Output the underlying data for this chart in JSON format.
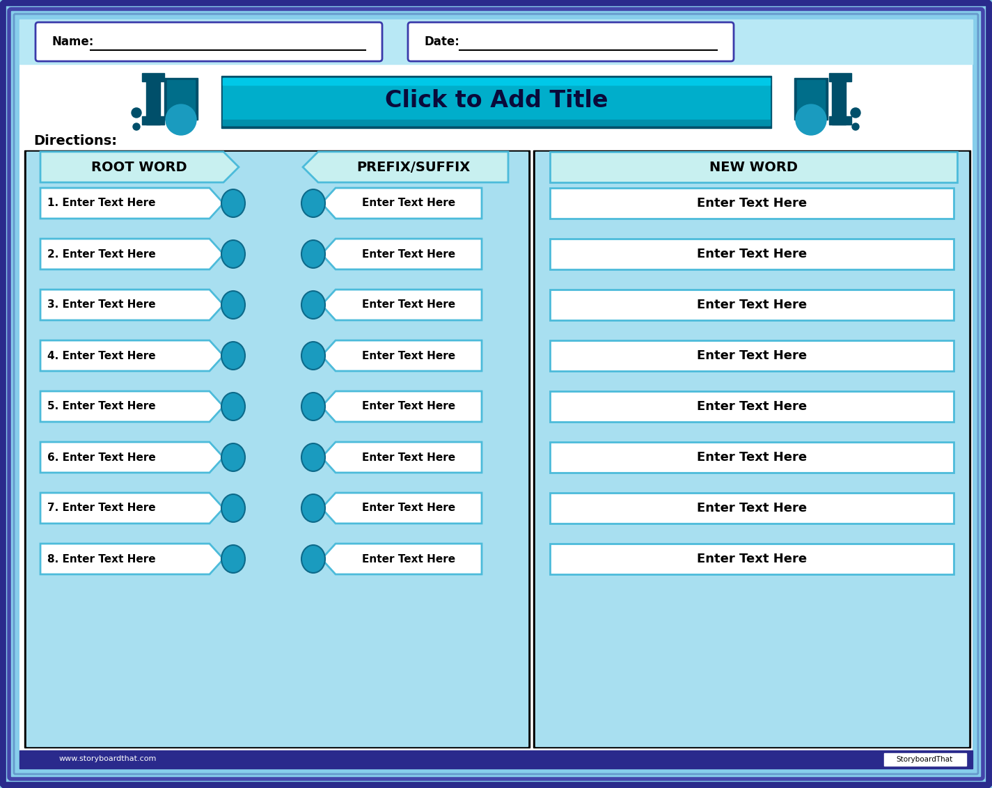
{
  "bg_outer": "#87CEEB",
  "bg_border_dark": "#2A2A8C",
  "bg_border_mid": "#4444AA",
  "bg_border_light": "#6699CC",
  "bg_light_blue": "#B8E8F5",
  "panel_blue": "#A8DFF0",
  "title_bg": "#00AECB",
  "title_bg_dark": "#006E8A",
  "title_bg_darker": "#004F6A",
  "title_text": "Click to Add Title",
  "directions_text": "Directions:",
  "col1_header": "ROOT WORD",
  "col2_header": "PREFIX/SUFFIX",
  "col3_header": "NEW WORD",
  "row_labels": [
    "1. Enter Text Here",
    "2. Enter Text Here",
    "3. Enter Text Here",
    "4. Enter Text Here",
    "5. Enter Text Here",
    "6. Enter Text Here",
    "7. Enter Text Here",
    "8. Enter Text Here"
  ],
  "entry_text": "Enter Text Here",
  "name_label": "Name:",
  "date_label": "Date:",
  "circle_color": "#1A9BBF",
  "circle_dark": "#0D6A8A",
  "box_border": "#4CBBDA",
  "header_fill": "#C8F0F0",
  "footer_text_color": "#FFFFFF",
  "storyboard_text": "StoryboardThat",
  "website_text": "www.storyboardthat.com"
}
